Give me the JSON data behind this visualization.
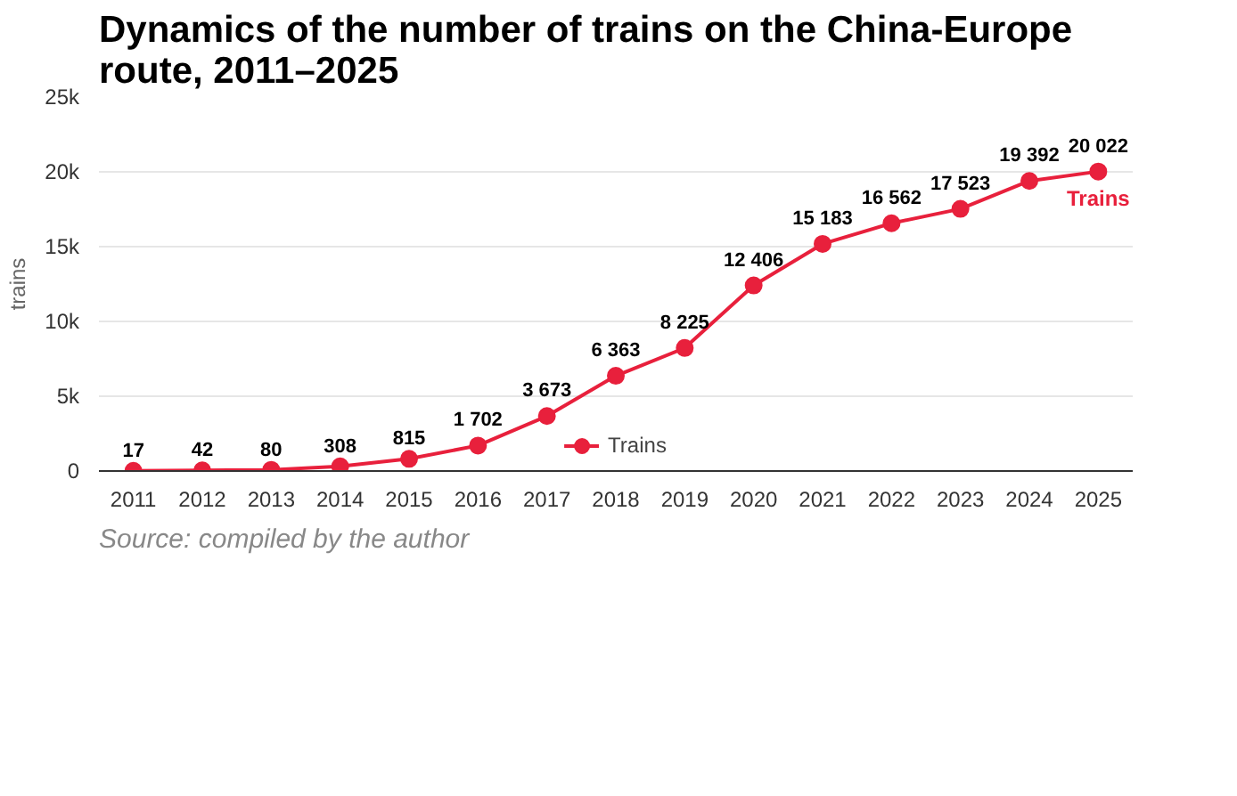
{
  "chart_data": {
    "type": "line",
    "title": "Dynamics of the number of trains on the China-Europe route, 2011–2025",
    "ylabel": "trains",
    "categories": [
      "2011",
      "2012",
      "2013",
      "2014",
      "2015",
      "2016",
      "2017",
      "2018",
      "2019",
      "2020",
      "2021",
      "2022",
      "2023",
      "2024",
      "2025"
    ],
    "series": [
      {
        "name": "Trains",
        "color": "#e8203c",
        "values": [
          17,
          42,
          80,
          308,
          815,
          1702,
          3673,
          6363,
          8225,
          12406,
          15183,
          16562,
          17523,
          19392,
          20022
        ],
        "value_labels": [
          "17",
          "42",
          "80",
          "308",
          "815",
          "1 702",
          "3 673",
          "6 363",
          "8 225",
          "12 406",
          "15 183",
          "16 562",
          "17 523",
          "19 392",
          "20 022"
        ]
      }
    ],
    "ylim": [
      0,
      25000
    ],
    "yticks": [
      {
        "value": 0,
        "label": "0"
      },
      {
        "value": 5000,
        "label": "5k"
      },
      {
        "value": 10000,
        "label": "10k"
      },
      {
        "value": 15000,
        "label": "15k"
      },
      {
        "value": 20000,
        "label": "20k"
      },
      {
        "value": 25000,
        "label": "25k"
      }
    ],
    "grid": "y",
    "legend": "bottom",
    "marker": "circle",
    "line_style": "solid",
    "annotations": [
      "Source: compiled by the author"
    ]
  }
}
